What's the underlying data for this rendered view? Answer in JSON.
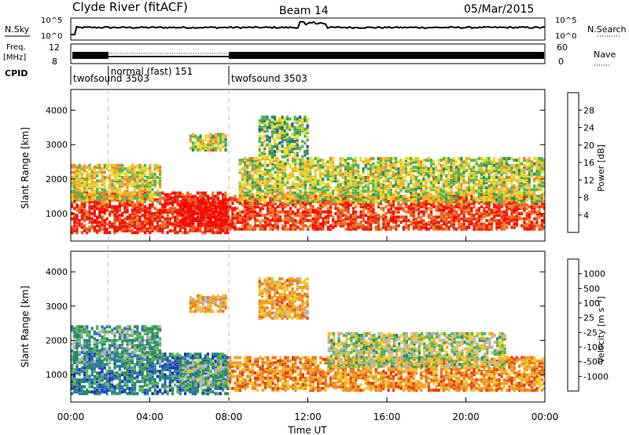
{
  "header": {
    "station": "Clyde River (fitACF)",
    "beam": "Beam 14",
    "date": "05/Mar/2015"
  },
  "top_panels": {
    "nsky_label": "N.Sky",
    "nsky_ticks": [
      "10^5",
      "10^0"
    ],
    "nsearch_label": "N.Search",
    "nsearch_ticks": [
      "10^5",
      "10^0"
    ],
    "freq_label_1": "Freq.",
    "freq_label_2": "[MHz]",
    "freq_ticks": [
      "12",
      "8"
    ],
    "nave_label": "Nave",
    "nave_ticks": [
      "60",
      "0"
    ],
    "cpid_label": "CPID",
    "cpid_segments": [
      {
        "label": "twofsound 3503",
        "start_h": 0.0
      },
      {
        "label": "normal (fast) 151",
        "start_h": 1.9
      },
      {
        "label": "twofsound 3503",
        "start_h": 8.0
      }
    ]
  },
  "chart_data": [
    {
      "type": "heatmap",
      "panel": "power",
      "ylabel": "Slant Range [km]",
      "yticks": [
        1000,
        2000,
        3000,
        4000
      ],
      "ylim": [
        200,
        4600
      ],
      "xlim_hours": [
        0,
        24
      ],
      "xticks": [
        "00:00",
        "04:00",
        "08:00",
        "12:00",
        "16:00",
        "20:00",
        "00:00"
      ],
      "colorbar": {
        "label": "Power [dB]",
        "ticks": [
          "28",
          "24",
          "20",
          "16",
          "12",
          "8",
          "4"
        ],
        "colors": [
          "#1414ff",
          "#2850c8",
          "#2a8a5a",
          "#50b450",
          "#e6dc28",
          "#f0b428",
          "#f08228",
          "#f05a14",
          "#e61e0a",
          "#ff0000"
        ]
      },
      "bands": [
        {
          "x0": 0.0,
          "x1": 8.0,
          "rmin": 400,
          "rmax": 1600,
          "level": 0.85
        },
        {
          "x0": 0.0,
          "x1": 4.5,
          "rmin": 1300,
          "rmax": 2400,
          "level": 0.5
        },
        {
          "x0": 5.5,
          "x1": 8.0,
          "rmin": 600,
          "rmax": 1400,
          "level": 0.95
        },
        {
          "x0": 6.0,
          "x1": 7.8,
          "rmin": 2800,
          "rmax": 3300,
          "level": 0.45
        },
        {
          "x0": 8.0,
          "x1": 24.0,
          "rmin": 500,
          "rmax": 1500,
          "level": 0.8
        },
        {
          "x0": 8.5,
          "x1": 24.0,
          "rmin": 1300,
          "rmax": 2600,
          "level": 0.45
        },
        {
          "x0": 9.5,
          "x1": 12.0,
          "rmin": 2600,
          "rmax": 3800,
          "level": 0.35
        }
      ]
    },
    {
      "type": "heatmap",
      "panel": "velocity",
      "ylabel": "Slant Range [km]",
      "xlabel": "Time UT",
      "yticks": [
        1000,
        2000,
        3000,
        4000
      ],
      "ylim": [
        200,
        4600
      ],
      "xlim_hours": [
        0,
        24
      ],
      "xticks": [
        "00:00",
        "04:00",
        "08:00",
        "12:00",
        "16:00",
        "20:00",
        "00:00"
      ],
      "colorbar": {
        "label": "Velocity  [m s⁻¹]",
        "ticks": [
          "1000",
          "500",
          "100",
          "25",
          "-25",
          "-100",
          "-500",
          "-1000"
        ],
        "colors": [
          "#2030c8",
          "#2870b8",
          "#2a8a5a",
          "#50b450",
          "#b4b4b4",
          "#f0c828",
          "#f0a028",
          "#f07814",
          "#e63c0a",
          "#ff0000"
        ]
      },
      "bands": [
        {
          "x0": 0.0,
          "x1": 8.0,
          "rmin": 400,
          "rmax": 1600,
          "level": 0.2
        },
        {
          "x0": 0.0,
          "x1": 4.5,
          "rmin": 1300,
          "rmax": 2400,
          "level": 0.3
        },
        {
          "x0": 5.5,
          "x1": 8.0,
          "rmin": 600,
          "rmax": 1400,
          "level": 0.35
        },
        {
          "x0": 6.0,
          "x1": 7.8,
          "rmin": 2800,
          "rmax": 3300,
          "level": 0.6
        },
        {
          "x0": 8.0,
          "x1": 24.0,
          "rmin": 500,
          "rmax": 1500,
          "level": 0.7
        },
        {
          "x0": 13.0,
          "x1": 22.0,
          "rmin": 1200,
          "rmax": 2200,
          "level": 0.45
        },
        {
          "x0": 9.5,
          "x1": 12.0,
          "rmin": 2600,
          "rmax": 3800,
          "level": 0.65
        }
      ]
    }
  ]
}
